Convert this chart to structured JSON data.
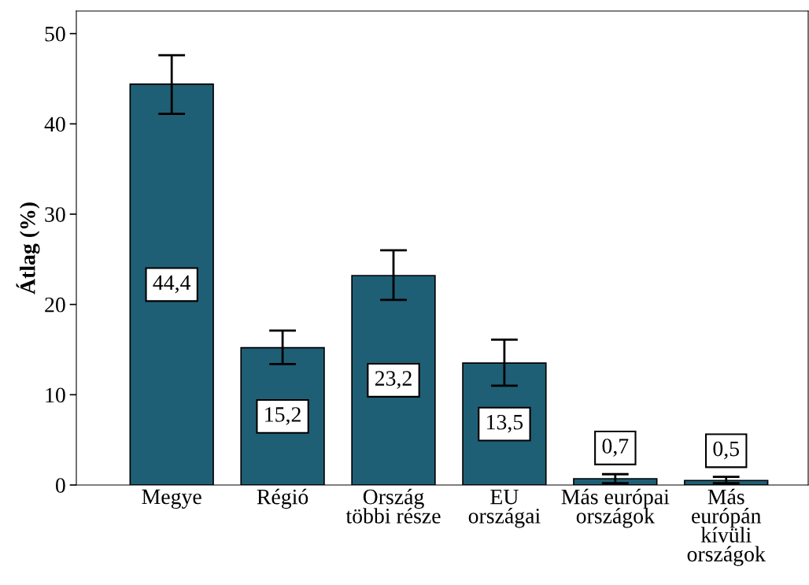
{
  "chart_data": {
    "type": "bar",
    "ylabel": "Átlag (%)",
    "categories": [
      "Megye",
      "Régió",
      "Ország\ntöbbi része",
      "EU\nországai",
      "Más európai\nországok",
      "Más\neurópán\nkívüli\nországok"
    ],
    "values": [
      44.4,
      15.2,
      23.2,
      13.5,
      0.7,
      0.5
    ],
    "errors": [
      [
        41.1,
        47.6
      ],
      [
        13.4,
        17.1
      ],
      [
        20.5,
        26.0
      ],
      [
        11.0,
        16.1
      ],
      [
        0.2,
        1.2
      ],
      [
        0.2,
        0.9
      ]
    ],
    "value_labels": [
      "44,4",
      "15,2",
      "23,2",
      "13,5",
      "0,7",
      "0,5"
    ],
    "color": "#1f5f75",
    "ylim": [
      0,
      52.5
    ],
    "yticks": [
      0,
      10,
      20,
      30,
      40,
      50
    ],
    "grid": false
  }
}
